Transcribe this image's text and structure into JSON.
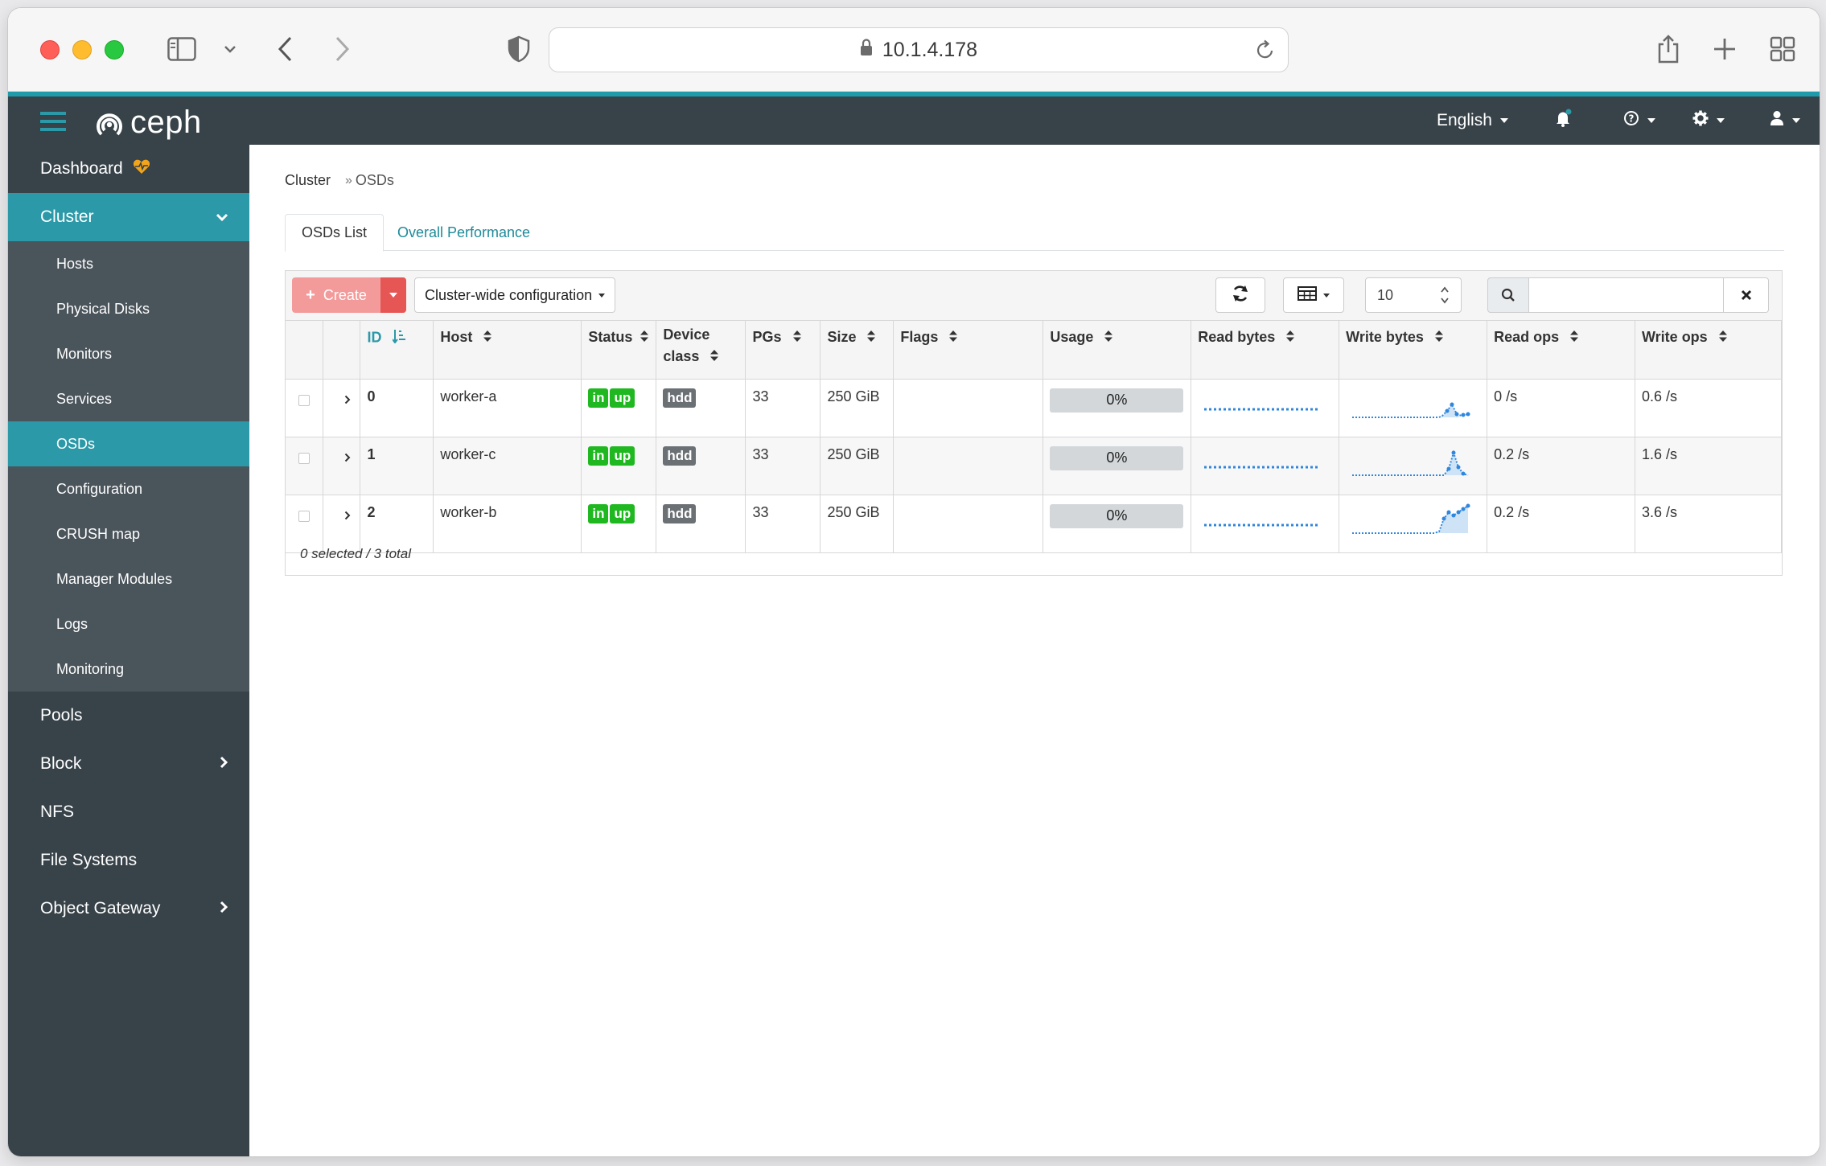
{
  "browser": {
    "url": "10.1.4.178"
  },
  "navbar": {
    "brand": "ceph",
    "language": "English"
  },
  "sidebar": {
    "dashboard": "Dashboard",
    "cluster": "Cluster",
    "cluster_items": [
      {
        "label": "Hosts"
      },
      {
        "label": "Physical Disks"
      },
      {
        "label": "Monitors"
      },
      {
        "label": "Services"
      },
      {
        "label": "OSDs"
      },
      {
        "label": "Configuration"
      },
      {
        "label": "CRUSH map"
      },
      {
        "label": "Manager Modules"
      },
      {
        "label": "Logs"
      },
      {
        "label": "Monitoring"
      }
    ],
    "pools": "Pools",
    "block": "Block",
    "nfs": "NFS",
    "file_systems": "File Systems",
    "object_gateway": "Object Gateway"
  },
  "breadcrumb": {
    "parent": "Cluster",
    "current": "OSDs",
    "separator": "»"
  },
  "tabs": {
    "list": "OSDs List",
    "performance": "Overall Performance"
  },
  "toolbar": {
    "create": "Create",
    "cluster_config": "Cluster-wide configuration",
    "page_size": "10",
    "search_placeholder": ""
  },
  "table": {
    "headers": {
      "id": "ID",
      "host": "Host",
      "status": "Status",
      "device_class_1": "Device",
      "device_class_2": "class",
      "pgs": "PGs",
      "size": "Size",
      "flags": "Flags",
      "usage": "Usage",
      "read_bytes": "Read bytes",
      "write_bytes": "Write bytes",
      "read_ops": "Read ops",
      "write_ops": "Write ops"
    },
    "rows": [
      {
        "id": "0",
        "host": "worker-a",
        "status_in": "in",
        "status_up": "up",
        "device_class": "hdd",
        "pgs": "33",
        "size": "250 GiB",
        "flags": "",
        "usage": "0%",
        "read_ops": "0 /s",
        "write_ops": "0.6 /s"
      },
      {
        "id": "1",
        "host": "worker-c",
        "status_in": "in",
        "status_up": "up",
        "device_class": "hdd",
        "pgs": "33",
        "size": "250 GiB",
        "flags": "",
        "usage": "0%",
        "read_ops": "0.2 /s",
        "write_ops": "1.6 /s"
      },
      {
        "id": "2",
        "host": "worker-b",
        "status_in": "in",
        "status_up": "up",
        "device_class": "hdd",
        "pgs": "33",
        "size": "250 GiB",
        "flags": "",
        "usage": "0%",
        "read_ops": "0.2 /s",
        "write_ops": "3.6 /s"
      }
    ],
    "footer": "0 selected / 3 total"
  },
  "colors": {
    "accent": "#2b99a8",
    "navbar": "#374249",
    "create": "#f29b9a",
    "badge_green": "#20b820",
    "badge_gray": "#6b7075"
  }
}
